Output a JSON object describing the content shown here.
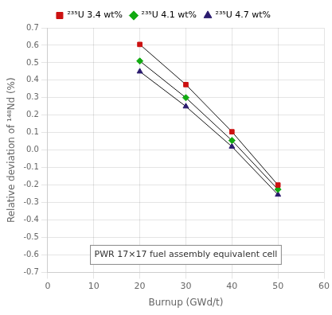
{
  "chart_data": {
    "type": "line",
    "xlabel": "Burnup (GWd/t)",
    "ylabel": "Relative deviation of ¹⁴⁸Nd (%)",
    "annotation": "PWR 17×17 fuel assembly equivalent cell",
    "x": [
      20,
      30,
      40,
      50
    ],
    "color": "#111111",
    "series": [
      {
        "name": "²³⁵U 3.4 wt%",
        "color": "#cc1111",
        "marker": "square",
        "values": [
          0.605,
          0.375,
          0.105,
          -0.2
        ]
      },
      {
        "name": "²³⁵U 4.1 wt%",
        "color": "#11aa11",
        "marker": "diamond",
        "values": [
          0.51,
          0.3,
          0.055,
          -0.225
        ]
      },
      {
        "name": "²³⁵U 4.7 wt%",
        "color": "#2b1b6e",
        "marker": "triangle",
        "values": [
          0.45,
          0.25,
          0.02,
          -0.255
        ]
      }
    ],
    "xlim": [
      0,
      60
    ],
    "ylim": [
      -0.7,
      0.7
    ],
    "xticks": [
      0,
      10,
      20,
      30,
      40,
      50,
      60
    ],
    "yticks": [
      -0.7,
      -0.6,
      -0.5,
      -0.4,
      -0.3,
      -0.2,
      -0.1,
      {
        "value": 0,
        "label": "0.0"
      },
      0.1,
      0.2,
      0.3,
      0.4,
      0.5,
      0.6,
      0.7
    ],
    "grid": true,
    "legend": "top"
  }
}
